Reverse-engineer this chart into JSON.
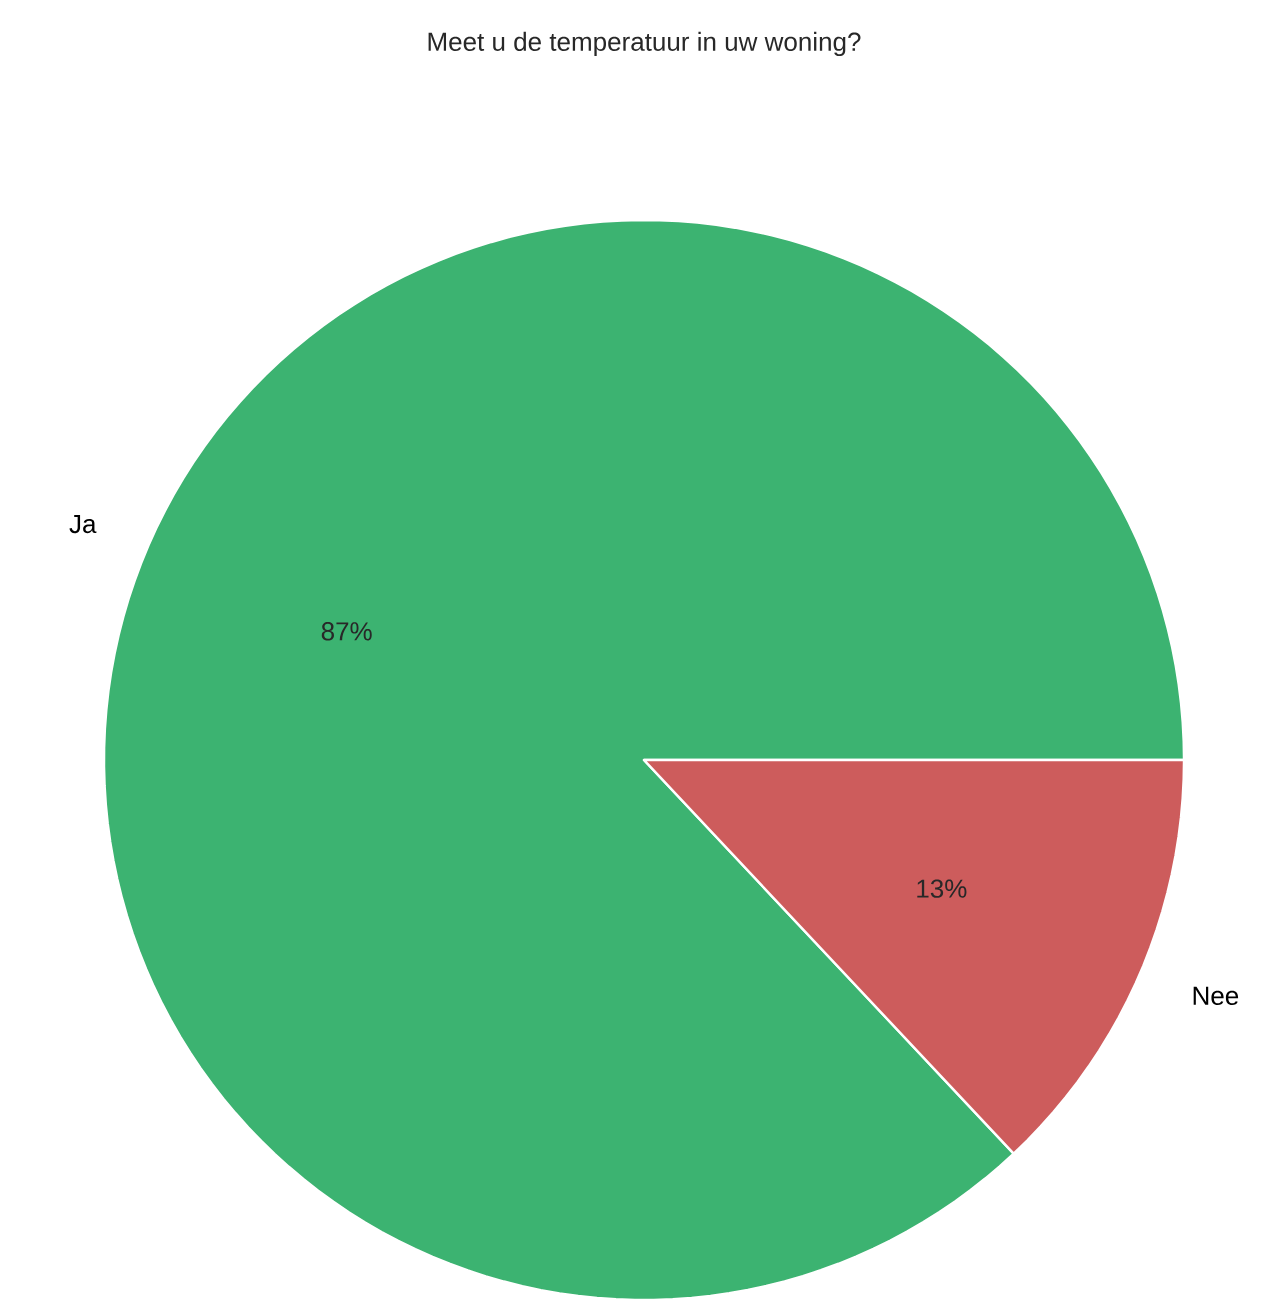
{
  "chart_data": {
    "type": "pie",
    "title": "Meet u de temperatuur in uw woning?",
    "categories": [
      "Ja",
      "Nee"
    ],
    "values": [
      87,
      13
    ],
    "colors": [
      "#3cb371",
      "#cd5c5c"
    ],
    "value_labels": [
      "87%",
      "13%"
    ]
  }
}
